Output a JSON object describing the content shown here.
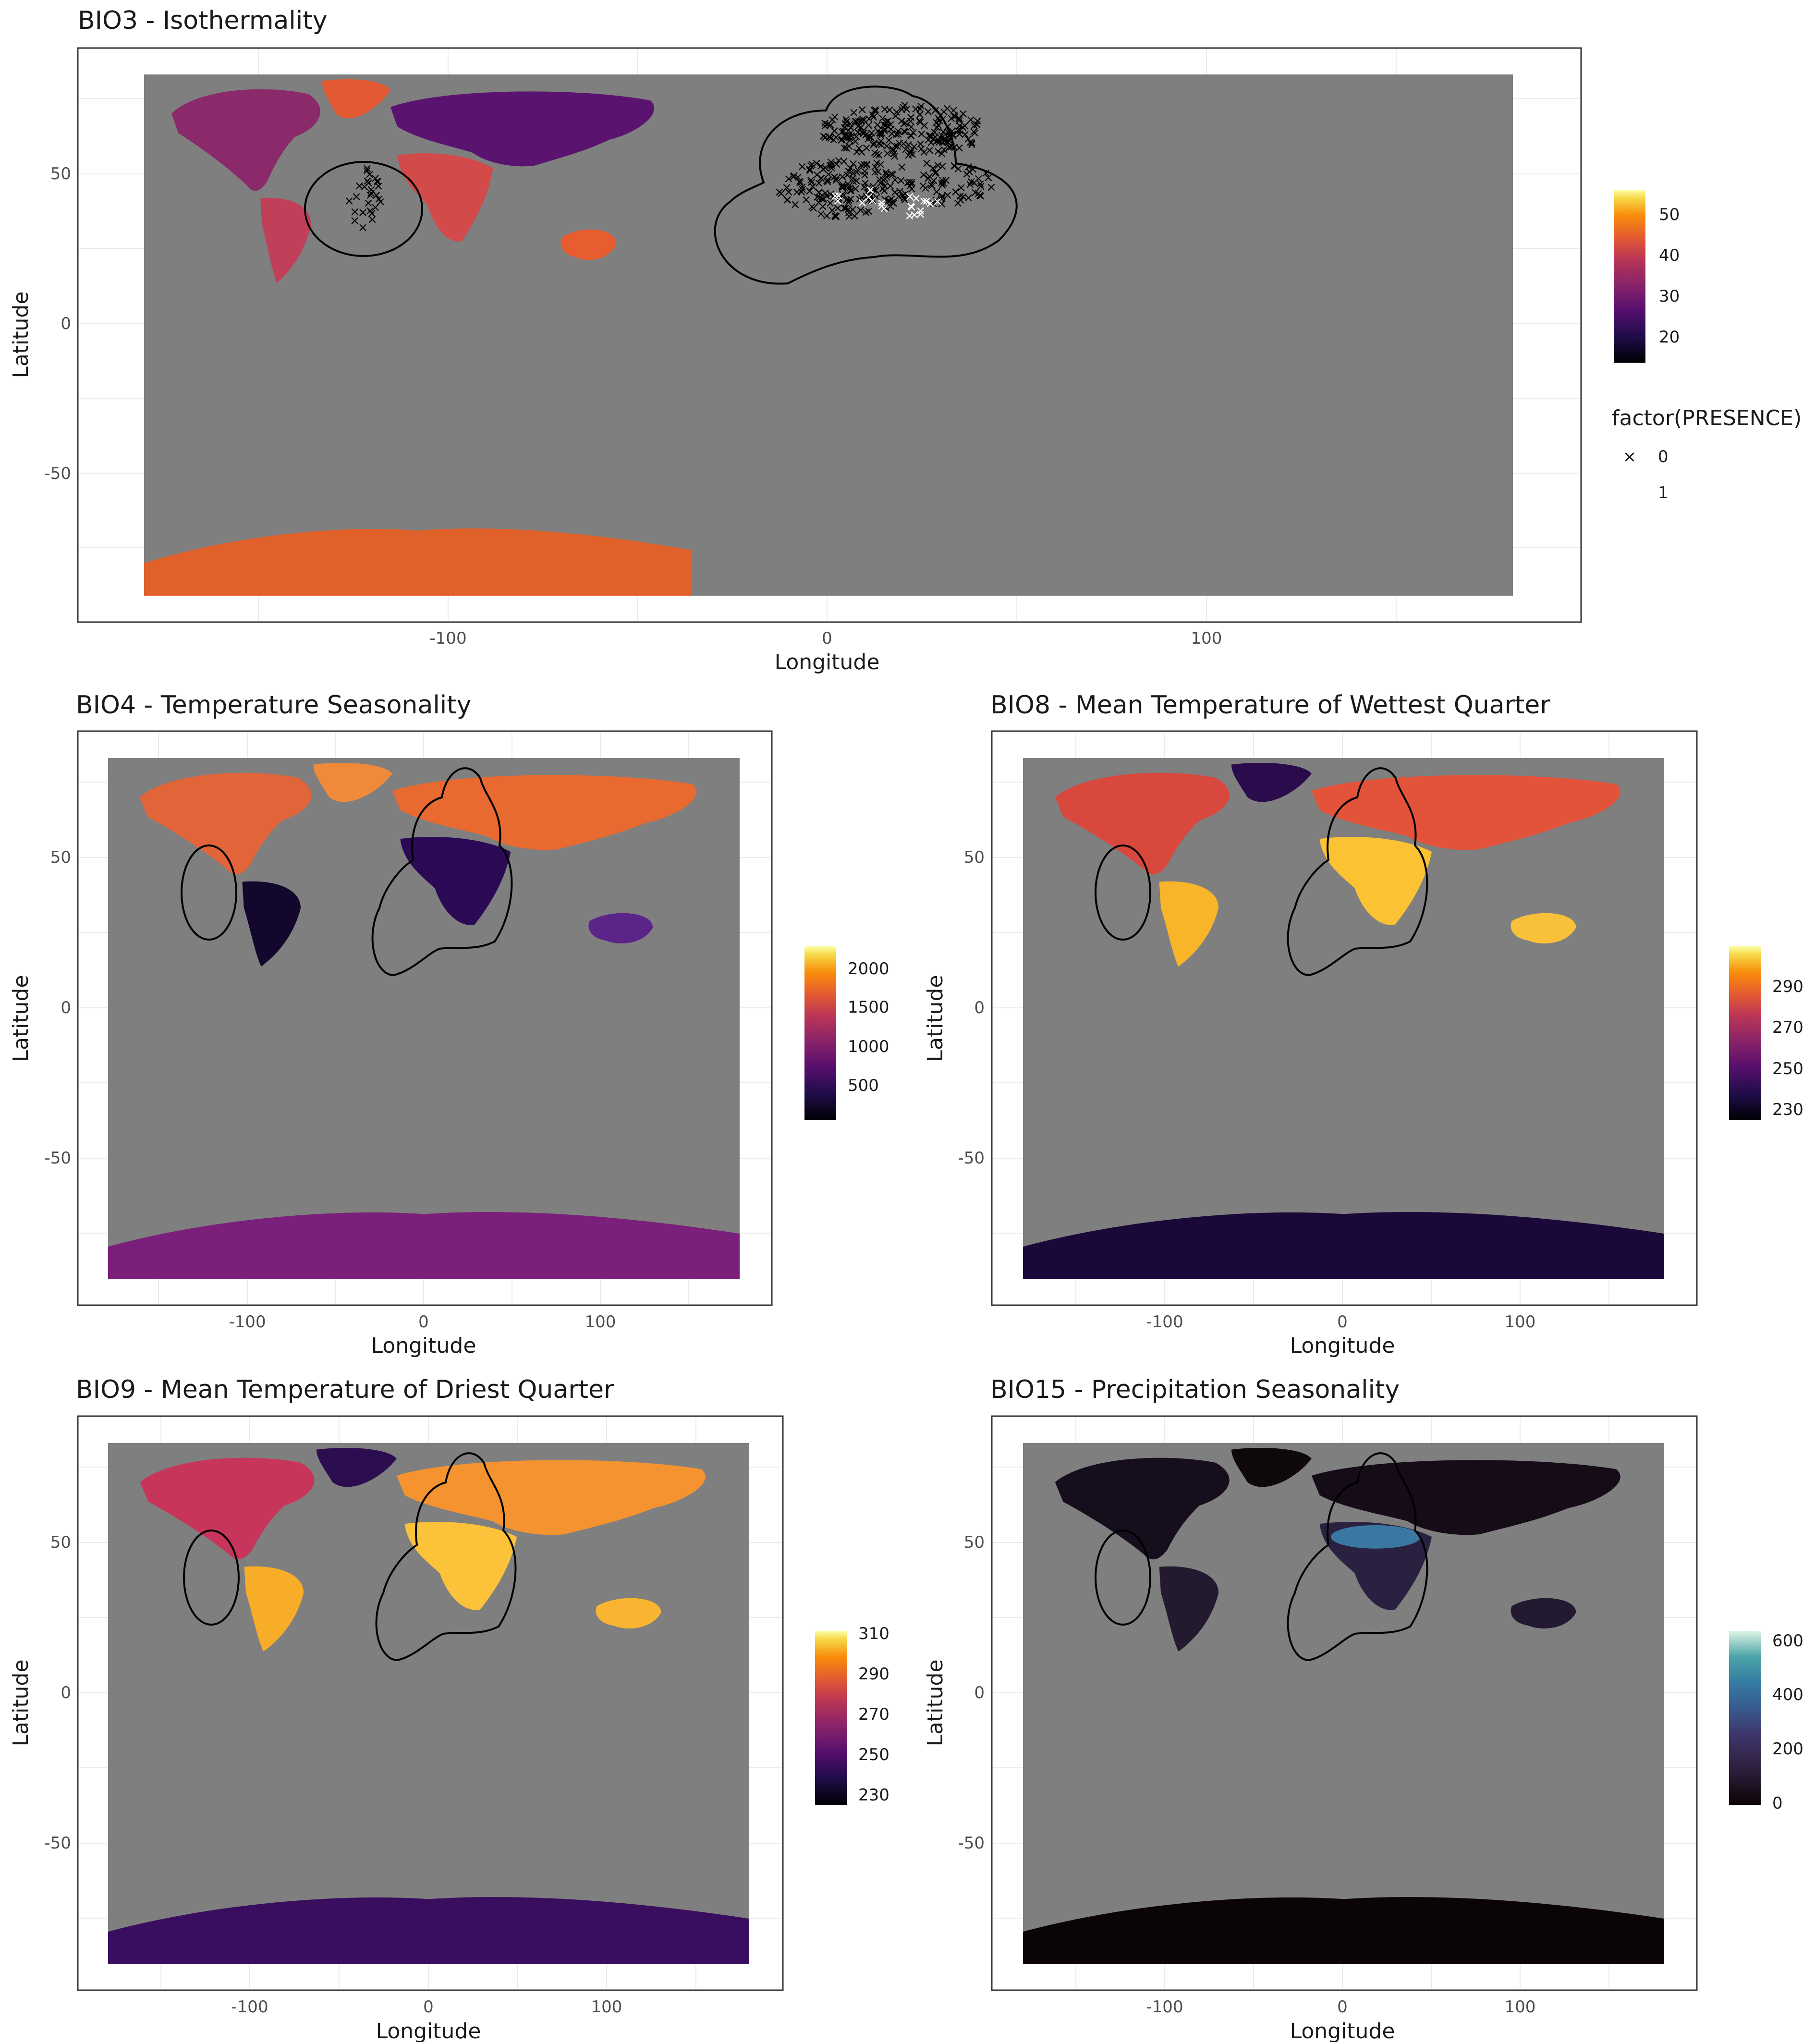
{
  "axes": {
    "x_label": "Longitude",
    "y_label": "Latitude"
  },
  "x_ticks": [
    "-100",
    "0",
    "100"
  ],
  "y_ticks": [
    "50",
    "0",
    "-50"
  ],
  "colors": {
    "ocean": "#7f7f7f",
    "panel_border": "#333333",
    "grid": "#ebebeb",
    "outline": "#000000"
  },
  "panels": [
    {
      "id": "bio3",
      "title": "BIO3 - Isothermality",
      "palette": "inferno",
      "legend": {
        "ticks": [
          "50",
          "40",
          "30",
          "20"
        ],
        "range": [
          14,
          56
        ]
      },
      "shape_legend": {
        "title": "factor(PRESENCE)",
        "items": [
          {
            "symbol": "×",
            "label": "0"
          },
          {
            "symbol": "",
            "label": "1"
          }
        ]
      },
      "has_points": true
    },
    {
      "id": "bio4",
      "title": "BIO4 - Temperature Seasonality",
      "palette": "inferno",
      "legend": {
        "ticks": [
          "2000",
          "1500",
          "1000",
          "500"
        ],
        "range": [
          90,
          2200
        ]
      }
    },
    {
      "id": "bio8",
      "title": "BIO8 - Mean Temperature of Wettest Quarter",
      "palette": "inferno",
      "legend": {
        "ticks": [
          "290",
          "270",
          "250",
          "230"
        ],
        "range": [
          228,
          302
        ]
      }
    },
    {
      "id": "bio9",
      "title": "BIO9 - Mean Temperature of Driest Quarter",
      "palette": "inferno",
      "legend": {
        "ticks": [
          "310",
          "290",
          "270",
          "250",
          "230"
        ],
        "range": [
          228,
          312
        ]
      }
    },
    {
      "id": "bio15",
      "title": "BIO15 - Precipitation Seasonality",
      "palette": "mako",
      "legend": {
        "ticks": [
          "600",
          "400",
          "200",
          "0"
        ],
        "range": [
          0,
          640
        ]
      }
    }
  ]
}
